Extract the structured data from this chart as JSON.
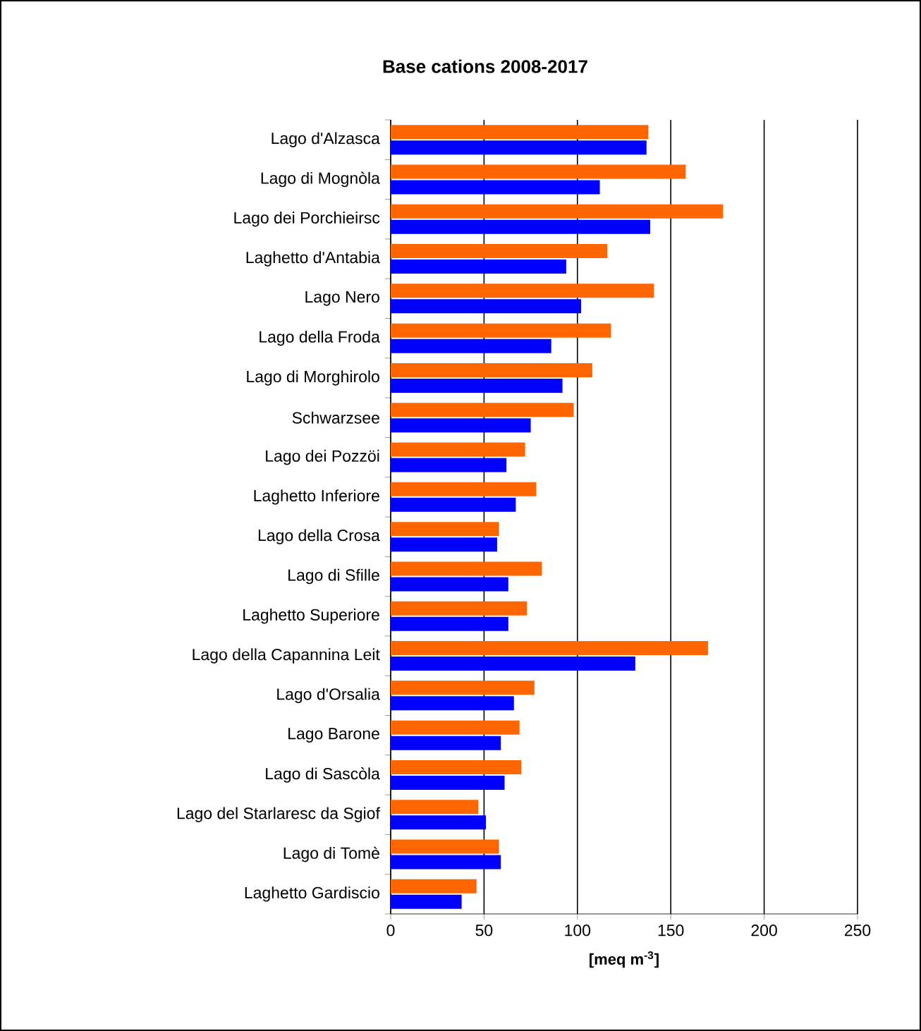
{
  "chart_data": {
    "type": "bar",
    "orientation": "horizontal",
    "title": "Base cations 2008-2017",
    "xlabel": "[meq m$^{-3}$]",
    "categories": [
      "Lago d'Alzasca",
      "Lago di Mognòla",
      "Lago dei Porchieirsc",
      "Laghetto d'Antabia",
      "Lago Nero",
      "Lago della Froda",
      "Lago di  Morghirolo",
      "Schwarzsee",
      "Lago dei Pozzöi",
      "Laghetto Inferiore",
      "Lago della Crosa",
      "Lago di Sfille",
      "Laghetto Superiore",
      "Lago della Capannina Leit",
      "Lago d'Orsalia",
      "Lago Barone",
      "Lago di Sascòla",
      "Lago del Starlaresc da Sgiof",
      "Lago di Tomè",
      "Laghetto Gardiscio"
    ],
    "series": [
      {
        "color": "#ff6600",
        "values": [
          138,
          158,
          178,
          116,
          141,
          118,
          108,
          98,
          72,
          78,
          58,
          81,
          73,
          170,
          77,
          69,
          70,
          47,
          58,
          46
        ]
      },
      {
        "color": "#0000ff",
        "values": [
          137,
          112,
          139,
          94,
          102,
          86,
          92,
          75,
          62,
          67,
          57,
          63,
          63,
          131,
          66,
          59,
          61,
          51,
          59,
          38
        ]
      }
    ],
    "xlim": [
      0,
      250
    ],
    "xticks": [
      0,
      50,
      100,
      150,
      200,
      250
    ],
    "grid": "x"
  }
}
